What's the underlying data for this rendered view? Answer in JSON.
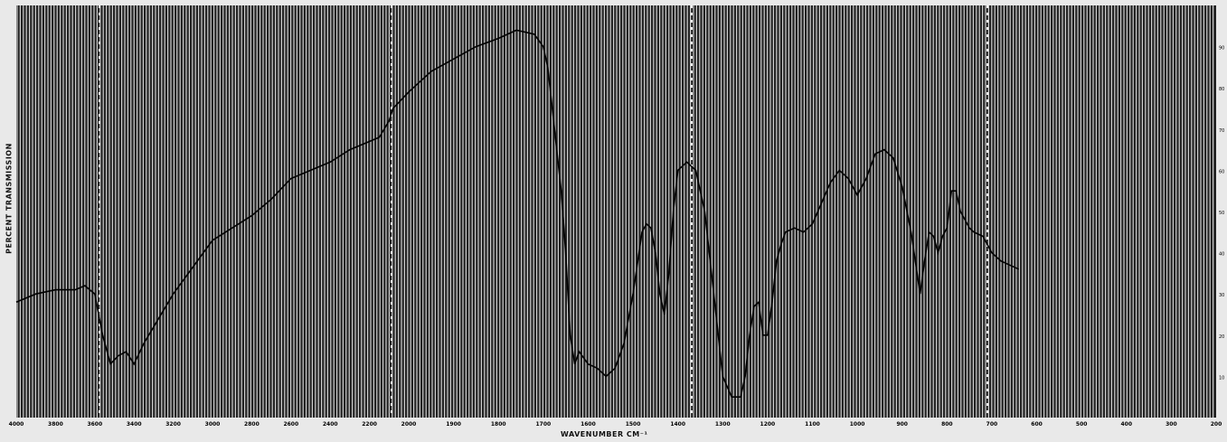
{
  "chart_data": {
    "type": "line",
    "title": "",
    "xlabel": "WAVENUMBER CM⁻¹",
    "ylabel": "PERCENT TRANSMISSION",
    "xlim": [
      4000,
      200
    ],
    "ylim": [
      0,
      100
    ],
    "x_tick_labels": [
      "4000",
      "3800",
      "3600",
      "3400",
      "3200",
      "3000",
      "2800",
      "2600",
      "2400",
      "2200",
      "2000",
      "1900",
      "1800",
      "1700",
      "1600",
      "1500",
      "1400",
      "1300",
      "1200",
      "1100",
      "1000",
      "900",
      "800",
      "700",
      "600",
      "500",
      "400",
      "300",
      "200"
    ],
    "y_tick_labels": [
      "10",
      "20",
      "30",
      "40",
      "50",
      "60",
      "70",
      "80",
      "90"
    ],
    "series": [
      {
        "x": [
          4000,
          3900,
          3800,
          3700,
          3650,
          3600,
          3560,
          3520,
          3480,
          3440,
          3400,
          3350,
          3200,
          3000,
          2800,
          2700,
          2600,
          2400,
          2300,
          2200,
          2150,
          2100,
          2080,
          2040,
          2000,
          1950,
          1900,
          1850,
          1800,
          1760,
          1720,
          1700,
          1690,
          1680,
          1670,
          1660,
          1650,
          1640,
          1630,
          1620,
          1600,
          1580,
          1560,
          1540,
          1520,
          1500,
          1480,
          1470,
          1460,
          1450,
          1440,
          1430,
          1420,
          1410,
          1400,
          1380,
          1360,
          1340,
          1330,
          1320,
          1300,
          1280,
          1260,
          1250,
          1240,
          1230,
          1220,
          1210,
          1200,
          1190,
          1180,
          1170,
          1160,
          1140,
          1120,
          1100,
          1080,
          1060,
          1040,
          1020,
          1000,
          980,
          960,
          940,
          920,
          900,
          880,
          860,
          850,
          840,
          830,
          820,
          810,
          800,
          790,
          780,
          770,
          760,
          750,
          740,
          720,
          700,
          680,
          660,
          640
        ],
        "y": [
          28,
          30,
          31,
          31,
          32,
          30,
          20,
          13,
          15,
          16,
          13,
          18,
          30,
          43,
          49,
          53,
          58,
          62,
          65,
          67,
          68,
          72,
          75,
          77,
          79,
          84,
          87,
          90,
          92,
          94,
          93,
          90,
          85,
          75,
          65,
          55,
          40,
          20,
          13,
          16,
          13,
          12,
          10,
          12,
          18,
          30,
          45,
          47,
          46,
          40,
          30,
          25,
          35,
          50,
          60,
          62,
          60,
          50,
          40,
          30,
          10,
          5,
          5,
          10,
          20,
          27,
          28,
          20,
          20,
          28,
          38,
          42,
          45,
          46,
          45,
          47,
          52,
          57,
          60,
          58,
          54,
          58,
          64,
          65,
          63,
          56,
          45,
          30,
          38,
          45,
          44,
          40,
          44,
          46,
          55,
          55,
          50,
          48,
          46,
          45,
          44,
          40,
          38,
          37,
          36
        ]
      }
    ]
  }
}
